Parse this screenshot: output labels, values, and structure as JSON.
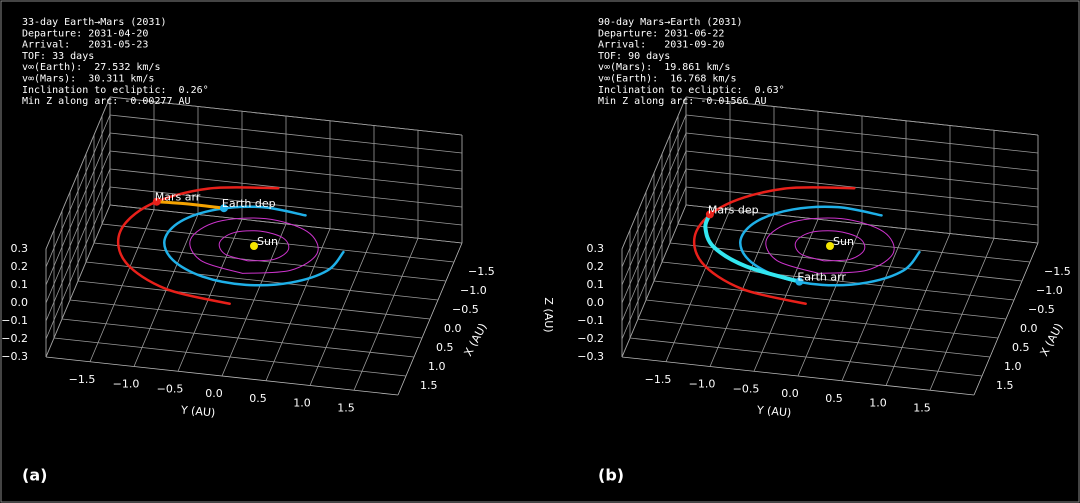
{
  "chart_data": [
    {
      "type": "line3d",
      "panel_label": "(a)",
      "info": [
        "33-day Earth→Mars (2031)",
        "Departure: 2031-04-20",
        "Arrival:   2031-05-23",
        "TOF: 33 days",
        "v∞(Earth):  27.532 km/s",
        "v∞(Mars):  30.311 km/s",
        "Inclination to ecliptic:  0.26°",
        "Min Z along arc: -0.00277 AU"
      ],
      "xlabel": "X (AU)",
      "ylabel": "Y (AU)",
      "xlim": [
        -2,
        2
      ],
      "ylim": [
        -2,
        2
      ],
      "zlim": [
        -0.3,
        0.3
      ],
      "xticks": [
        {
          "value": -1.5,
          "label": "−1.5"
        },
        {
          "value": -1.0,
          "label": "−1.0"
        },
        {
          "value": -0.5,
          "label": "−0.5"
        },
        {
          "value": 0.0,
          "label": "0.0"
        },
        {
          "value": 0.5,
          "label": "0.5"
        },
        {
          "value": 1.0,
          "label": "1.0"
        },
        {
          "value": 1.5,
          "label": "1.5"
        }
      ],
      "yticks": [
        {
          "value": -1.5,
          "label": "−1.5"
        },
        {
          "value": -1.0,
          "label": "−1.0"
        },
        {
          "value": -0.5,
          "label": "−0.5"
        },
        {
          "value": 0.0,
          "label": "0.0"
        },
        {
          "value": 0.5,
          "label": "0.5"
        },
        {
          "value": 1.0,
          "label": "1.0"
        },
        {
          "value": 1.5,
          "label": "1.5"
        }
      ],
      "zticks": [
        {
          "value": -0.3,
          "label": "−0.3"
        },
        {
          "value": -0.2,
          "label": "−0.2"
        },
        {
          "value": -0.1,
          "label": "−0.1"
        },
        {
          "value": 0.0,
          "label": "0.0"
        },
        {
          "value": 0.1,
          "label": "0.1"
        },
        {
          "value": 0.2,
          "label": "0.2"
        },
        {
          "value": 0.3,
          "label": "0.3"
        }
      ],
      "grid": true,
      "series": [
        {
          "color": "#e8201a",
          "width": 2.5,
          "x": [
            -1.52,
            -1.32,
            -0.76,
            0,
            0.76,
            1.32,
            1.52
          ],
          "y": [
            0,
            -0.76,
            -1.32,
            -1.52,
            -1.32,
            -0.76,
            0
          ],
          "z": [
            0,
            0,
            0,
            0,
            0,
            0,
            0
          ]
        },
        {
          "color": "#1fb0e8",
          "width": 2.5,
          "x": [
            -0.91,
            -1.0,
            -0.82,
            -0.42,
            0.09,
            0.57,
            0.91,
            1.0,
            0.82,
            0.42,
            -0.09
          ],
          "y": [
            0.42,
            -0.09,
            -0.57,
            -0.91,
            -1.0,
            -0.82,
            -0.42,
            0.09,
            0.57,
            0.91,
            1.0
          ],
          "z": [
            0,
            0,
            0,
            0,
            0,
            0,
            0,
            0,
            0,
            0,
            0
          ]
        },
        {
          "color": "#cc33cc",
          "width": 1,
          "x": [
            0.72,
            0.51,
            0,
            -0.51,
            -0.72,
            -0.51,
            0,
            0.51,
            0.72
          ],
          "y": [
            0,
            0.51,
            0.72,
            0.51,
            0,
            -0.51,
            -0.72,
            -0.51,
            0
          ],
          "z": [
            0,
            0,
            0,
            0,
            0,
            0,
            0,
            0,
            0
          ]
        },
        {
          "color": "#cc33cc",
          "width": 1,
          "x": [
            0.39,
            0.28,
            0,
            -0.28,
            -0.39,
            -0.28,
            0,
            0.28,
            0.39
          ],
          "y": [
            0,
            0.28,
            0.39,
            0.28,
            0,
            -0.28,
            -0.39,
            -0.28,
            0
          ],
          "z": [
            0,
            0,
            0,
            0,
            0,
            0,
            0,
            0,
            0
          ]
        },
        {
          "color": "#f5a300",
          "width": 3,
          "x": [
            -0.87,
            -0.88,
            -0.85
          ],
          "y": [
            -0.5,
            -0.88,
            -1.26
          ],
          "z": [
            0,
            0,
            0
          ]
        }
      ],
      "points": [
        {
          "text": "Sun",
          "x": 0,
          "y": 0,
          "z": 0,
          "color": "#f5e600"
        },
        {
          "text": "Earth dep",
          "x": -0.87,
          "y": -0.5,
          "z": 0,
          "color": "#1fb0e8"
        },
        {
          "text": "Mars arr",
          "x": -0.85,
          "y": -1.26,
          "z": 0,
          "color": "#e8201a"
        }
      ]
    },
    {
      "type": "line3d",
      "panel_label": "(b)",
      "info": [
        "90-day Mars→Earth (2031)",
        "Departure: 2031-06-22",
        "Arrival:   2031-09-20",
        "TOF: 90 days",
        "v∞(Mars):  19.861 km/s",
        "v∞(Earth):  16.768 km/s",
        "Inclination to ecliptic:  0.63°",
        "Min Z along arc: -0.01566 AU"
      ],
      "xlabel": "X (AU)",
      "ylabel": "Y (AU)",
      "zlabel": "Z (AU)",
      "xlim": [
        -2,
        2
      ],
      "ylim": [
        -2,
        2
      ],
      "zlim": [
        -0.3,
        0.3
      ],
      "xticks": [
        {
          "value": -1.5,
          "label": "−1.5"
        },
        {
          "value": -1.0,
          "label": "−1.0"
        },
        {
          "value": -0.5,
          "label": "−0.5"
        },
        {
          "value": 0.0,
          "label": "0.0"
        },
        {
          "value": 0.5,
          "label": "0.5"
        },
        {
          "value": 1.0,
          "label": "1.0"
        },
        {
          "value": 1.5,
          "label": "1.5"
        }
      ],
      "yticks": [
        {
          "value": -1.5,
          "label": "−1.5"
        },
        {
          "value": -1.0,
          "label": "−1.0"
        },
        {
          "value": -0.5,
          "label": "−0.5"
        },
        {
          "value": 0.0,
          "label": "0.0"
        },
        {
          "value": 0.5,
          "label": "0.5"
        },
        {
          "value": 1.0,
          "label": "1.0"
        },
        {
          "value": 1.5,
          "label": "1.5"
        }
      ],
      "zticks": [
        {
          "value": -0.3,
          "label": "−0.3"
        },
        {
          "value": -0.2,
          "label": "−0.2"
        },
        {
          "value": -0.1,
          "label": "−0.1"
        },
        {
          "value": 0.0,
          "label": "0.0"
        },
        {
          "value": 0.1,
          "label": "0.1"
        },
        {
          "value": 0.2,
          "label": "0.2"
        },
        {
          "value": 0.3,
          "label": "0.3"
        }
      ],
      "grid": true,
      "series": [
        {
          "color": "#e8201a",
          "width": 2.5,
          "x": [
            -1.52,
            -1.32,
            -0.76,
            0,
            0.76,
            1.32,
            1.52
          ],
          "y": [
            0,
            -0.76,
            -1.32,
            -1.52,
            -1.32,
            -0.76,
            0
          ],
          "z": [
            0,
            0,
            0,
            0,
            0,
            0,
            0
          ]
        },
        {
          "color": "#1fb0e8",
          "width": 2.5,
          "x": [
            -0.91,
            -1.0,
            -0.82,
            -0.42,
            0.09,
            0.57,
            0.91,
            1.0,
            0.82,
            0.42,
            -0.09
          ],
          "y": [
            0.42,
            -0.09,
            -0.57,
            -0.91,
            -1.0,
            -0.82,
            -0.42,
            0.09,
            0.57,
            0.91,
            1.0
          ],
          "z": [
            0,
            0,
            0,
            0,
            0,
            0,
            0,
            0,
            0,
            0,
            0
          ]
        },
        {
          "color": "#cc33cc",
          "width": 1,
          "x": [
            0.72,
            0.51,
            0,
            -0.51,
            -0.72,
            -0.51,
            0,
            0.51,
            0.72
          ],
          "y": [
            0,
            0.51,
            0.72,
            0.51,
            0,
            -0.51,
            -0.72,
            -0.51,
            0
          ],
          "z": [
            0,
            0,
            0,
            0,
            0,
            0,
            0,
            0,
            0
          ]
        },
        {
          "color": "#cc33cc",
          "width": 1,
          "x": [
            0.39,
            0.28,
            0,
            -0.28,
            -0.39,
            -0.28,
            0,
            0.28,
            0.39
          ],
          "y": [
            0,
            0.28,
            0.39,
            0.28,
            0,
            -0.28,
            -0.39,
            -0.28,
            0
          ],
          "z": [
            0,
            0,
            0,
            0,
            0,
            0,
            0,
            0,
            0
          ]
        },
        {
          "color": "#33e6f0",
          "width": 4,
          "x": [
            -0.47,
            -0.13,
            0.34,
            0.74,
            0.98
          ],
          "y": [
            -1.45,
            -1.44,
            -1.26,
            -0.82,
            -0.17
          ],
          "z": [
            0,
            0,
            0,
            0,
            0
          ]
        }
      ],
      "points": [
        {
          "text": "Sun",
          "x": 0,
          "y": 0,
          "z": 0,
          "color": "#f5e600"
        },
        {
          "text": "Mars dep",
          "x": -0.47,
          "y": -1.45,
          "z": 0,
          "color": "#e8201a"
        },
        {
          "text": "Earth arr",
          "x": 0.98,
          "y": -0.17,
          "z": 0,
          "color": "#1fb0e8"
        }
      ]
    }
  ]
}
